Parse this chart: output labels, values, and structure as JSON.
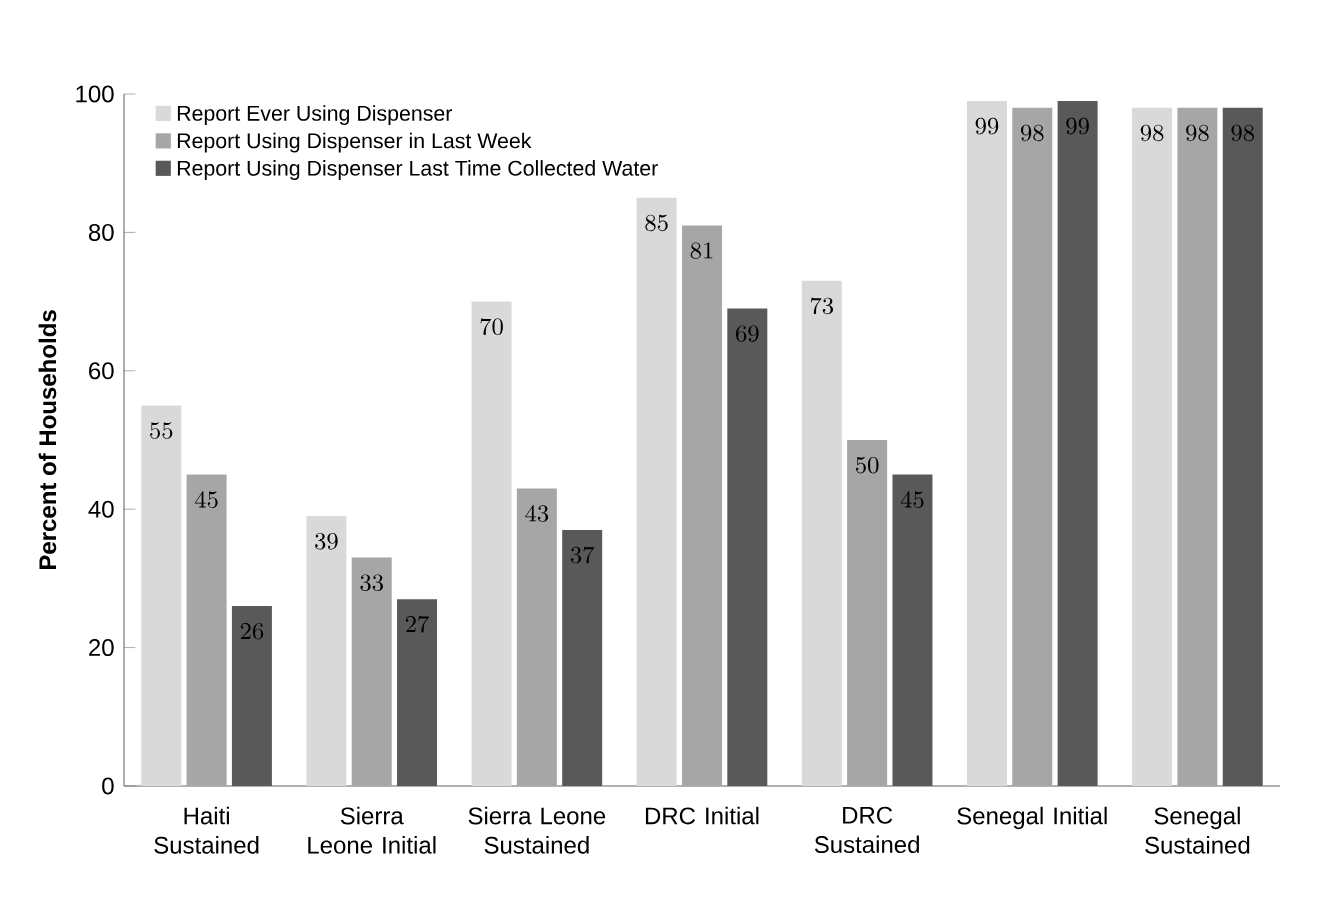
{
  "chart_data": {
    "type": "bar",
    "ylabel": "Percent of Households",
    "categories": [
      "Haiti Sustained",
      "Sierra Leone Initial",
      "Sierra Leone Sustained",
      "DRC Initial",
      "DRC Sustained",
      "Senegal Initial",
      "Senegal Sustained"
    ],
    "series": [
      {
        "name": "Report Ever Using Dispenser",
        "color": "#d9d9d9",
        "values": [
          55,
          39,
          70,
          85,
          73,
          99,
          98
        ]
      },
      {
        "name": "Report Using Dispenser in Last Week",
        "color": "#a6a6a6",
        "values": [
          45,
          33,
          43,
          81,
          50,
          98,
          98
        ]
      },
      {
        "name": "Report Using Dispenser Last Time Collected Water",
        "color": "#595959",
        "values": [
          26,
          27,
          37,
          69,
          45,
          99,
          98
        ]
      }
    ],
    "ylim": [
      0,
      100
    ],
    "yticks": [
      0,
      20,
      40,
      60,
      80,
      100
    ],
    "grid": false,
    "legend": "top left",
    "data_labels": true
  }
}
